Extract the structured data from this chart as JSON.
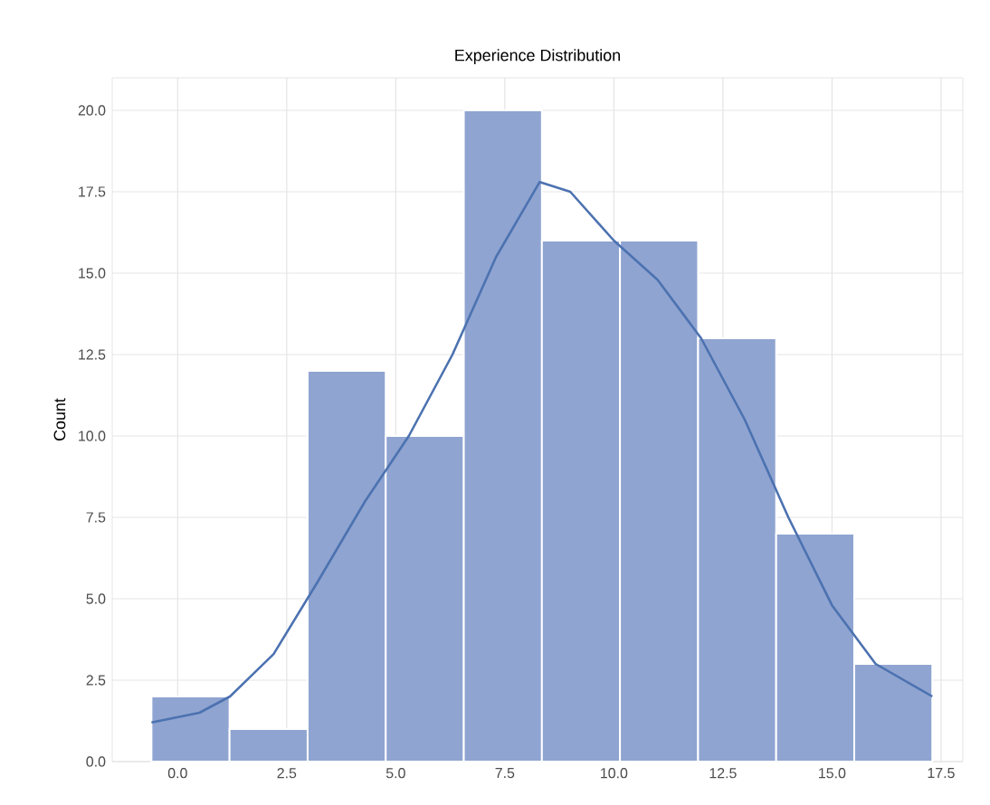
{
  "chart_data": {
    "type": "histogram",
    "title": "Experience Distribution",
    "ylabel": "Count",
    "bins": [
      -0.6,
      1.19,
      2.98,
      4.77,
      6.56,
      8.35,
      10.14,
      11.93,
      13.72,
      15.51,
      17.3
    ],
    "values": [
      2,
      1,
      12,
      10,
      20,
      16,
      16,
      13,
      7,
      3
    ],
    "color": "#8fa4d1",
    "series": [
      {
        "type": "line",
        "color": "#4c72b0",
        "x": [
          -0.6,
          0.5,
          1.2,
          2.2,
          3.2,
          4.3,
          5.3,
          6.3,
          7.3,
          8.3,
          9.0,
          10.0,
          11.0,
          12.0,
          13.0,
          14.0,
          15.0,
          16.0,
          17.3
        ],
        "values": [
          1.2,
          1.5,
          2.0,
          3.3,
          5.5,
          8.0,
          10.0,
          12.5,
          15.5,
          17.8,
          17.5,
          16.0,
          14.8,
          13.0,
          10.5,
          7.5,
          4.8,
          3.0,
          2.0
        ]
      }
    ],
    "xlim": [
      -1.5,
      18.0
    ],
    "ylim": [
      0,
      21
    ],
    "xticks": [
      {
        "value": 0,
        "label": "0.0"
      },
      {
        "value": 2.5,
        "label": "2.5"
      },
      {
        "value": 5,
        "label": "5.0"
      },
      {
        "value": 7.5,
        "label": "7.5"
      },
      {
        "value": 10,
        "label": "10.0"
      },
      {
        "value": 12.5,
        "label": "12.5"
      },
      {
        "value": 15,
        "label": "15.0"
      },
      {
        "value": 17.5,
        "label": "17.5"
      }
    ],
    "yticks": [
      {
        "value": 0,
        "label": "0.0"
      },
      {
        "value": 2.5,
        "label": "2.5"
      },
      {
        "value": 5,
        "label": "5.0"
      },
      {
        "value": 7.5,
        "label": "7.5"
      },
      {
        "value": 10,
        "label": "10.0"
      },
      {
        "value": 12.5,
        "label": "12.5"
      },
      {
        "value": 15,
        "label": "15.0"
      },
      {
        "value": 17.5,
        "label": "17.5"
      },
      {
        "value": 20,
        "label": "20.0"
      }
    ],
    "grid": true
  }
}
